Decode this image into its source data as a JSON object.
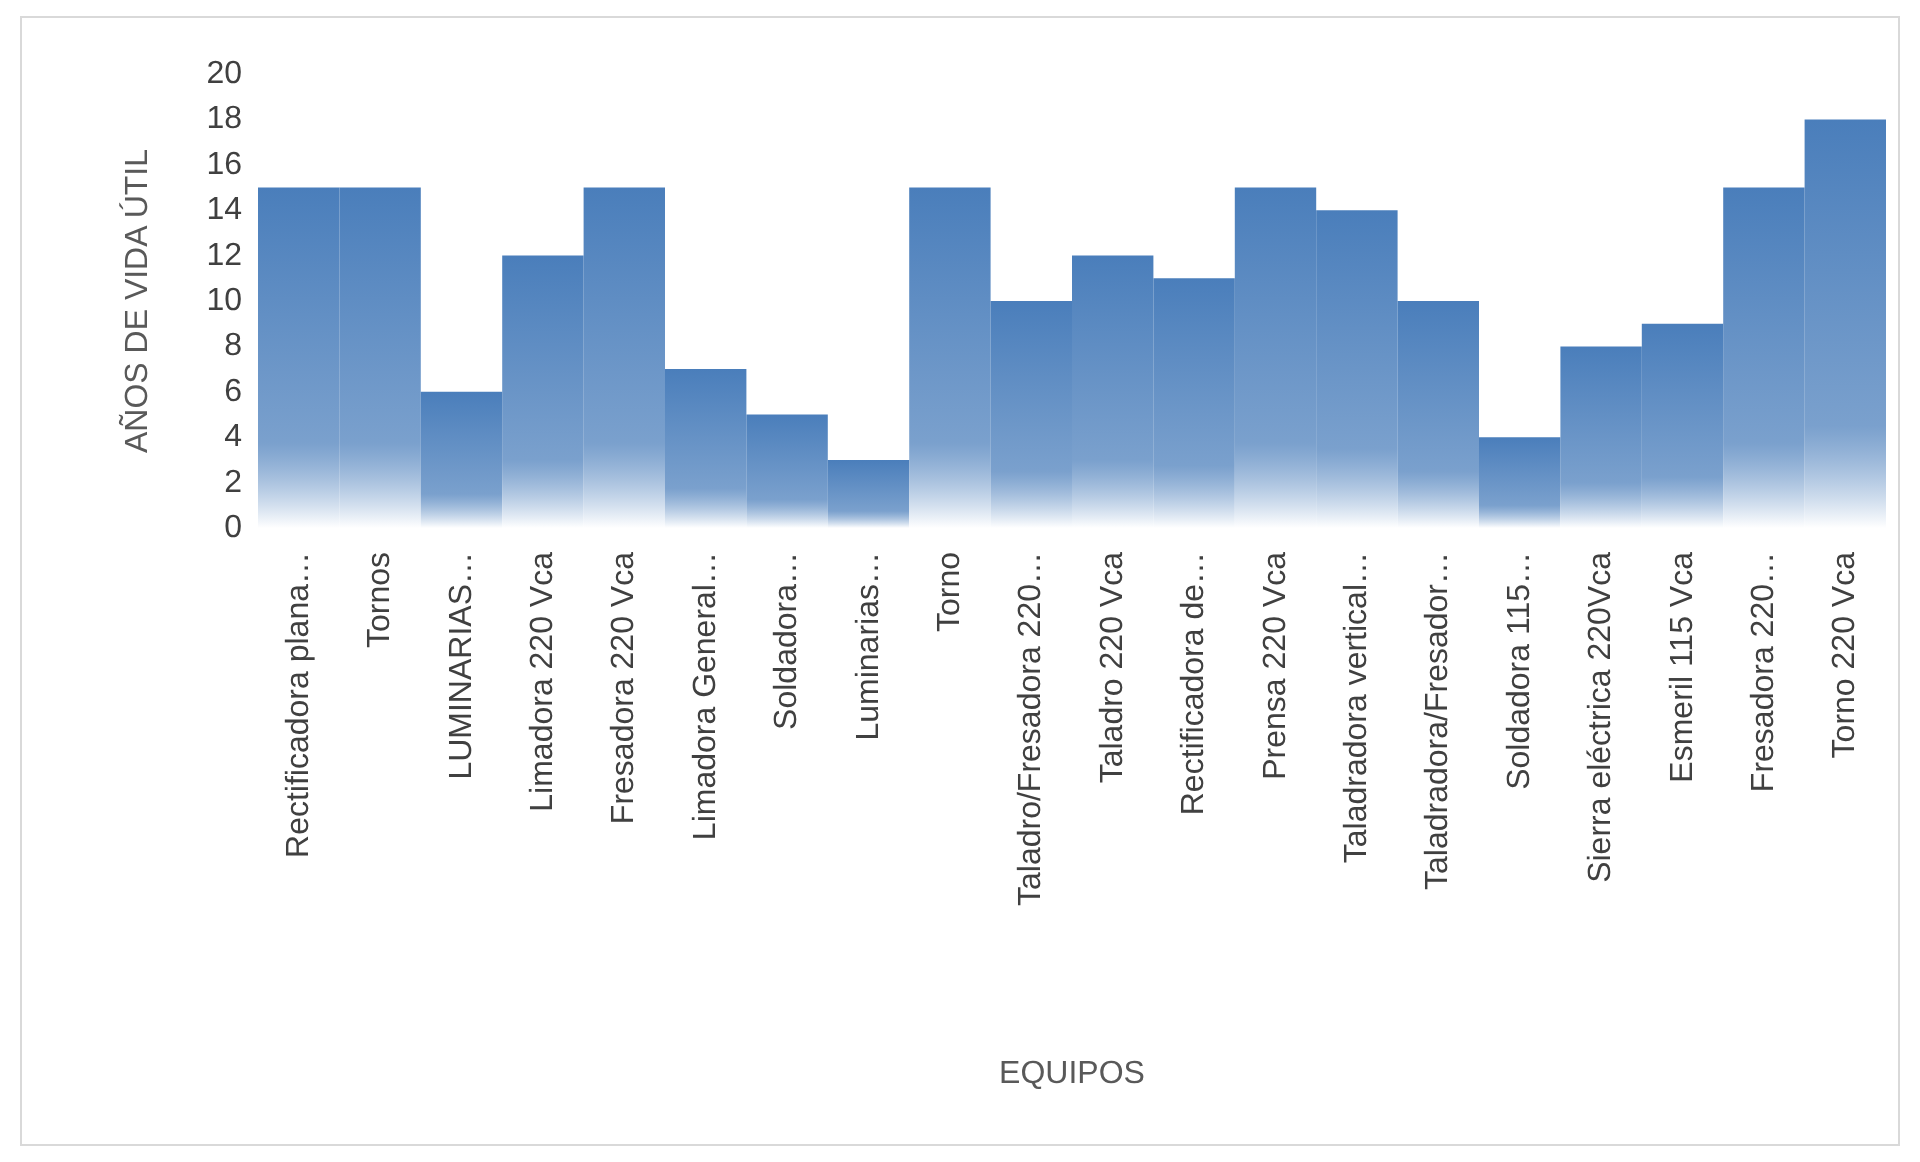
{
  "chart_data": {
    "type": "bar",
    "xlabel": "EQUIPOS",
    "ylabel": "AÑOS DE VIDA ÚTIL",
    "categories": [
      "Rectificadora plana…",
      "Tornos",
      "LUMINARIAS…",
      "Limadora 220 Vca",
      "Fresadora 220 Vca",
      "Limadora General…",
      "Soldadora…",
      "Luminarias…",
      "Torno",
      "Taladro/Fresadora 220…",
      "Taladro 220 Vca",
      "Rectificadora de…",
      "Prensa 220 Vca",
      "Taladradora vertical…",
      "Taladradora/Fresador…",
      "Soldadora 115…",
      "Sierra eléctrica 220Vca",
      "Esmeril 115 Vca",
      "Fresadora 220…",
      "Torno 220 Vca"
    ],
    "values": [
      15,
      15,
      6,
      12,
      15,
      7,
      5,
      3,
      15,
      10,
      12,
      11,
      15,
      14,
      10,
      4,
      8,
      9,
      15,
      18
    ],
    "color": "#4a7ebb",
    "ylim": [
      0,
      20
    ],
    "yticks": [
      0,
      2,
      4,
      6,
      8,
      10,
      12,
      14,
      16,
      18,
      20
    ],
    "grid": false
  }
}
